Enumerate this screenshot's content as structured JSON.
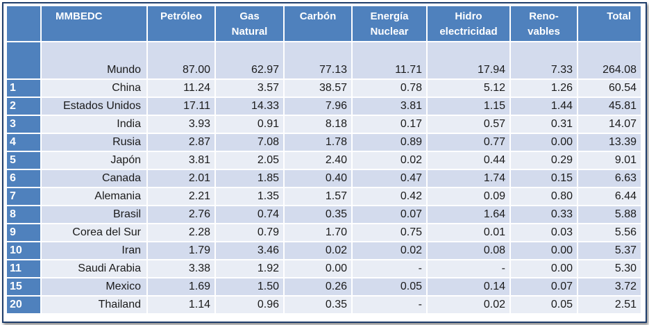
{
  "header": {
    "corner": "",
    "cols": [
      [
        "MMBEDC"
      ],
      [
        "Petróleo"
      ],
      [
        "Gas",
        "Natural"
      ],
      [
        "Carbón"
      ],
      [
        "Energía",
        "Nuclear"
      ],
      [
        "Hidro",
        "electricidad"
      ],
      [
        "Reno-",
        "vables"
      ],
      [
        "Total"
      ]
    ]
  },
  "world": {
    "rank": "",
    "country": "Mundo",
    "values": [
      "87.00",
      "62.97",
      "77.13",
      "11.71",
      "17.94",
      "7.33",
      "264.08"
    ]
  },
  "rows": [
    {
      "rank": "1",
      "country": "China",
      "values": [
        "11.24",
        "3.57",
        "38.57",
        "0.78",
        "5.12",
        "1.26",
        "60.54"
      ]
    },
    {
      "rank": "2",
      "country": "Estados Unidos",
      "values": [
        "17.11",
        "14.33",
        "7.96",
        "3.81",
        "1.15",
        "1.44",
        "45.81"
      ]
    },
    {
      "rank": "3",
      "country": "India",
      "values": [
        "3.93",
        "0.91",
        "8.18",
        "0.17",
        "0.57",
        "0.31",
        "14.07"
      ]
    },
    {
      "rank": "4",
      "country": "Rusia",
      "values": [
        "2.87",
        "7.08",
        "1.78",
        "0.89",
        "0.77",
        "0.00",
        "13.39"
      ]
    },
    {
      "rank": "5",
      "country": "Japón",
      "values": [
        "3.81",
        "2.05",
        "2.40",
        "0.02",
        "0.44",
        "0.29",
        "9.01"
      ]
    },
    {
      "rank": "6",
      "country": "Canada",
      "values": [
        "2.01",
        "1.85",
        "0.40",
        "0.47",
        "1.74",
        "0.15",
        "6.63"
      ]
    },
    {
      "rank": "7",
      "country": "Alemania",
      "values": [
        "2.21",
        "1.35",
        "1.57",
        "0.42",
        "0.09",
        "0.80",
        "6.44"
      ]
    },
    {
      "rank": "8",
      "country": "Brasil",
      "values": [
        "2.76",
        "0.74",
        "0.35",
        "0.07",
        "1.64",
        "0.33",
        "5.88"
      ]
    },
    {
      "rank": "9",
      "country": "Corea del Sur",
      "values": [
        "2.28",
        "0.79",
        "1.70",
        "0.75",
        "0.01",
        "0.03",
        "5.56"
      ]
    },
    {
      "rank": "10",
      "country": "Iran",
      "values": [
        "1.79",
        "3.46",
        "0.02",
        "0.02",
        "0.08",
        "0.00",
        "5.37"
      ]
    },
    {
      "rank": "11",
      "country": "Saudi Arabia",
      "values": [
        "3.38",
        "1.92",
        "0.00",
        "-",
        "-",
        "0.00",
        "5.30"
      ]
    },
    {
      "rank": "15",
      "country": "Mexico",
      "values": [
        "1.69",
        "1.50",
        "0.26",
        "0.05",
        "0.14",
        "0.07",
        "3.72"
      ]
    },
    {
      "rank": "20",
      "country": "Thailand",
      "values": [
        "1.14",
        "0.96",
        "0.35",
        "-",
        "0.02",
        "0.05",
        "2.51"
      ]
    }
  ],
  "colors": {
    "header": "#4f81bd",
    "band_dark": "#d3dbed",
    "band_light": "#e9edf5",
    "border": "#1e3d6b"
  }
}
